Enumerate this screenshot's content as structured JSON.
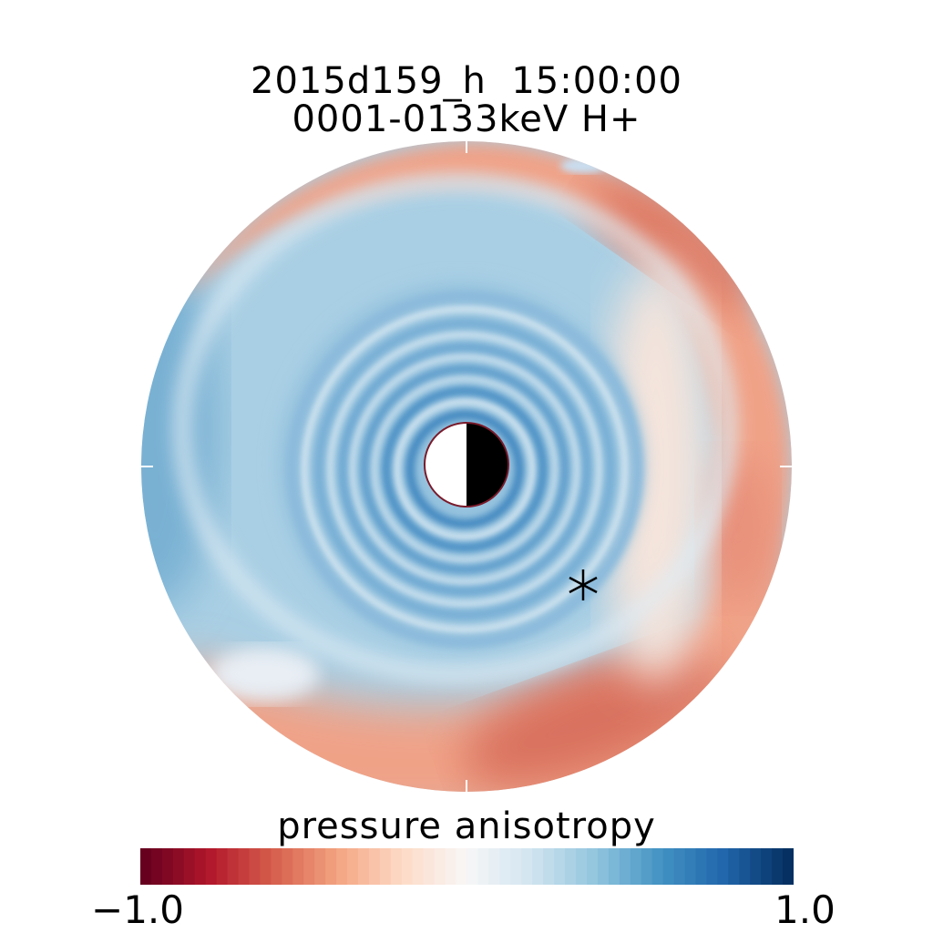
{
  "header": {
    "title_line1": "2015d159_h  15:00:00",
    "title_line2": "0001-0133keV H+"
  },
  "colorbar": {
    "label": "pressure anisotropy",
    "min_label": "−1.0",
    "max_label": "1.0",
    "colors": [
      "#67001f",
      "#b2182b",
      "#d6604d",
      "#f4a582",
      "#fddbc7",
      "#f7f7f7",
      "#d1e5f0",
      "#92c5de",
      "#4393c3",
      "#2166ac",
      "#053061"
    ]
  },
  "chart_data": {
    "type": "heatmap",
    "projection": "polar",
    "quantity": "pressure anisotropy",
    "color_range": [
      -1.0,
      1.0
    ],
    "colormap": "red-white-blue diverging",
    "features": {
      "center_marker": "half-white half-black disk",
      "star_marker": "asterisk"
    }
  }
}
